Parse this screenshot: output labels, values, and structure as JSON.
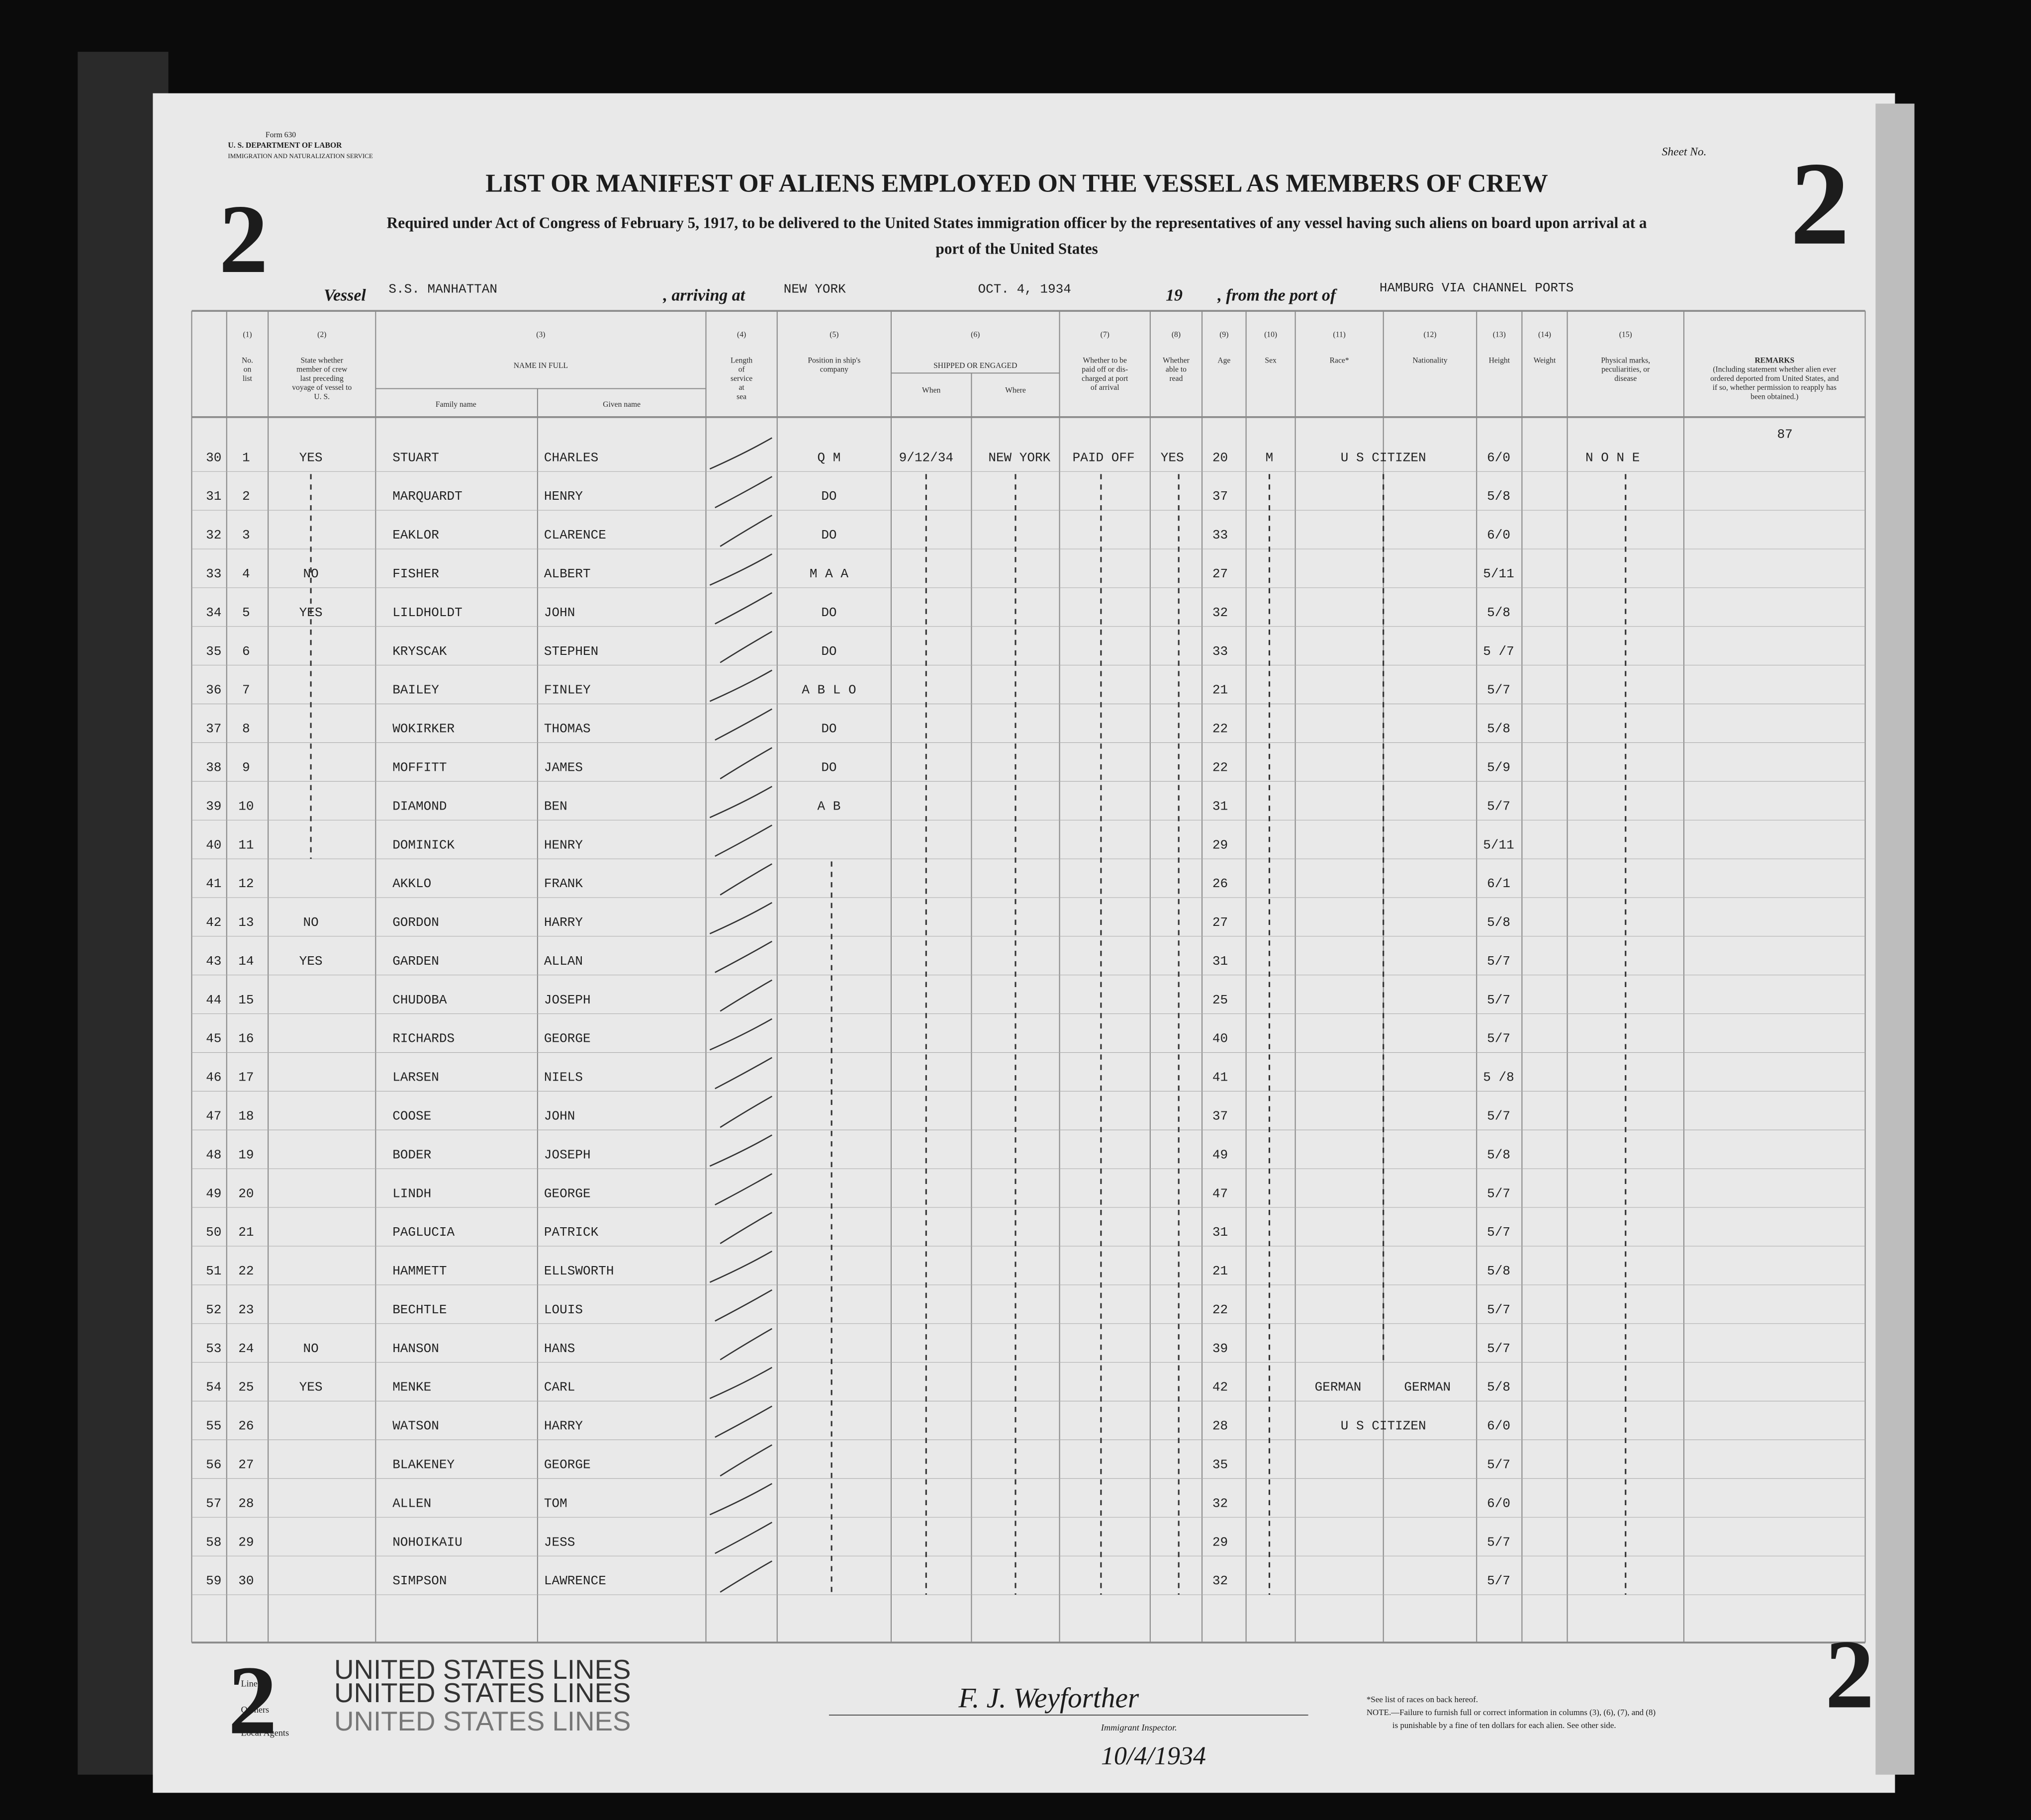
{
  "header": {
    "form": "Form 630",
    "department": "U. S. DEPARTMENT OF LABOR",
    "service": "IMMIGRATION AND NATURALIZATION SERVICE",
    "sheet_label": "Sheet No.",
    "title": "LIST OR MANIFEST OF ALIENS EMPLOYED ON THE VESSEL AS MEMBERS OF CREW",
    "subtitle": [
      "Required under Act of Congress of February 5, 1917, to be delivered to the United States immigration officer by the representatives of any vessel having such aliens on board upon arrival at a",
      "port of the United States"
    ]
  },
  "sheet_number": "2",
  "vessel": {
    "label": "Vessel",
    "name": "S.S. MANHATTAN",
    "arriving_label": ", arriving at",
    "arriving_at": "NEW YORK",
    "date": "OCT. 4, 1934",
    "year_prefix": "19",
    "from_label": ", from the port of",
    "from_port": "HAMBURG VIA CHANNEL PORTS"
  },
  "columns": [
    {
      "num": "(1)",
      "label": [
        "No.",
        "on",
        "list"
      ]
    },
    {
      "num": "(2)",
      "label": [
        "State whether",
        "member of crew",
        "last preceding",
        "voyage of vessel to",
        "U. S."
      ]
    },
    {
      "num": "(3)",
      "label": [
        "NAME IN FULL"
      ],
      "sub": [
        "Family name",
        "Given name"
      ]
    },
    {
      "num": "(4)",
      "label": [
        "Length",
        "of",
        "service",
        "at",
        "sea"
      ]
    },
    {
      "num": "(5)",
      "label": [
        "Position in ship's",
        "company"
      ]
    },
    {
      "num": "(6)",
      "label": [
        "SHIPPED OR ENGAGED"
      ],
      "sub": [
        "When",
        "Where"
      ]
    },
    {
      "num": "(7)",
      "label": [
        "Whether to be",
        "paid off or dis-",
        "charged at port",
        "of arrival"
      ]
    },
    {
      "num": "(8)",
      "label": [
        "Whether",
        "able to",
        "read"
      ]
    },
    {
      "num": "(9)",
      "label": [
        "Age"
      ]
    },
    {
      "num": "(10)",
      "label": [
        "Sex"
      ]
    },
    {
      "num": "(11)",
      "label": [
        "Race*"
      ]
    },
    {
      "num": "(12)",
      "label": [
        "Nationality"
      ]
    },
    {
      "num": "(13)",
      "label": [
        "Height"
      ]
    },
    {
      "num": "(14)",
      "label": [
        "Weight"
      ]
    },
    {
      "num": "(15)",
      "label": [
        "Physical marks,",
        "peculiarities, or",
        "disease"
      ]
    },
    {
      "label": [
        "REMARKS",
        "(Including statement whether alien ever",
        "ordered deported from United States, and",
        "if so, whether permission to reapply has",
        "been obtained.)"
      ]
    }
  ],
  "remark": "87",
  "rows": [
    [
      "30",
      "1",
      "YES",
      "STUART",
      "CHARLES",
      "Q M",
      "9/12/34",
      "NEW YORK",
      "PAID OFF",
      "YES",
      "20",
      "M",
      "U S CITIZEN",
      null,
      "6/0",
      "N O N E"
    ],
    [
      "31",
      "2",
      null,
      "MARQUARDT",
      "HENRY",
      "DO",
      null,
      null,
      null,
      null,
      "37",
      null,
      null,
      null,
      "5/8",
      null
    ],
    [
      "32",
      "3",
      null,
      "EAKLOR",
      "CLARENCE",
      "DO",
      null,
      null,
      null,
      null,
      "33",
      null,
      null,
      null,
      "6/0",
      null
    ],
    [
      "33",
      "4",
      "NO",
      "FISHER",
      "ALBERT",
      "M A A",
      null,
      null,
      null,
      null,
      "27",
      null,
      null,
      null,
      "5/11",
      null
    ],
    [
      "34",
      "5",
      "YES",
      "LILDHOLDT",
      "JOHN",
      "DO",
      null,
      null,
      null,
      null,
      "32",
      null,
      null,
      null,
      "5/8",
      null
    ],
    [
      "35",
      "6",
      null,
      "KRYSCAK",
      "STEPHEN",
      "DO",
      null,
      null,
      null,
      null,
      "33",
      null,
      null,
      null,
      "5 /7",
      null
    ],
    [
      "36",
      "7",
      null,
      "BAILEY",
      "FINLEY",
      "A B L O",
      null,
      null,
      null,
      null,
      "21",
      null,
      null,
      null,
      "5/7",
      null
    ],
    [
      "37",
      "8",
      null,
      "WOKIRKER",
      "THOMAS",
      "DO",
      null,
      null,
      null,
      null,
      "22",
      null,
      null,
      null,
      "5/8",
      null
    ],
    [
      "38",
      "9",
      null,
      "MOFFITT",
      "JAMES",
      "DO",
      null,
      null,
      null,
      null,
      "22",
      null,
      null,
      null,
      "5/9",
      null
    ],
    [
      "39",
      "10",
      null,
      "DIAMOND",
      "BEN",
      "A B",
      null,
      null,
      null,
      null,
      "31",
      null,
      null,
      null,
      "5/7",
      null
    ],
    [
      "40",
      "11",
      null,
      "DOMINICK",
      "HENRY",
      null,
      null,
      null,
      null,
      null,
      "29",
      null,
      null,
      null,
      "5/11",
      null
    ],
    [
      "41",
      "12",
      null,
      "AKKLO",
      "FRANK",
      null,
      null,
      null,
      null,
      null,
      "26",
      null,
      null,
      null,
      "6/1",
      null
    ],
    [
      "42",
      "13",
      "NO",
      "GORDON",
      "HARRY",
      null,
      null,
      null,
      null,
      null,
      "27",
      null,
      null,
      null,
      "5/8",
      null
    ],
    [
      "43",
      "14",
      "YES",
      "GARDEN",
      "ALLAN",
      null,
      null,
      null,
      null,
      null,
      "31",
      null,
      null,
      null,
      "5/7",
      null
    ],
    [
      "44",
      "15",
      null,
      "CHUDOBA",
      "JOSEPH",
      null,
      null,
      null,
      null,
      null,
      "25",
      null,
      null,
      null,
      "5/7",
      null
    ],
    [
      "45",
      "16",
      null,
      "RICHARDS",
      "GEORGE",
      null,
      null,
      null,
      null,
      null,
      "40",
      null,
      null,
      null,
      "5/7",
      null
    ],
    [
      "46",
      "17",
      null,
      "LARSEN",
      "NIELS",
      null,
      null,
      null,
      null,
      null,
      "41",
      null,
      null,
      null,
      "5 /8",
      null
    ],
    [
      "47",
      "18",
      null,
      "COOSE",
      "JOHN",
      null,
      null,
      null,
      null,
      null,
      "37",
      null,
      null,
      null,
      "5/7",
      null
    ],
    [
      "48",
      "19",
      null,
      "BODER",
      "JOSEPH",
      null,
      null,
      null,
      null,
      null,
      "49",
      null,
      null,
      null,
      "5/8",
      null
    ],
    [
      "49",
      "20",
      null,
      "LINDH",
      "GEORGE",
      null,
      null,
      null,
      null,
      null,
      "47",
      null,
      null,
      null,
      "5/7",
      null
    ],
    [
      "50",
      "21",
      null,
      "PAGLUCIA",
      "PATRICK",
      null,
      null,
      null,
      null,
      null,
      "31",
      null,
      null,
      null,
      "5/7",
      null
    ],
    [
      "51",
      "22",
      null,
      "HAMMETT",
      "ELLSWORTH",
      null,
      null,
      null,
      null,
      null,
      "21",
      null,
      null,
      null,
      "5/8",
      null
    ],
    [
      "52",
      "23",
      null,
      "BECHTLE",
      "LOUIS",
      null,
      null,
      null,
      null,
      null,
      "22",
      null,
      null,
      null,
      "5/7",
      null
    ],
    [
      "53",
      "24",
      "NO",
      "HANSON",
      "HANS",
      null,
      null,
      null,
      null,
      null,
      "39",
      null,
      null,
      null,
      "5/7",
      null
    ],
    [
      "54",
      "25",
      "YES",
      "MENKE",
      "CARL",
      null,
      null,
      null,
      null,
      null,
      "42",
      null,
      "GERMAN",
      "GERMAN",
      "5/8",
      null
    ],
    [
      "55",
      "26",
      null,
      "WATSON",
      "HARRY",
      null,
      null,
      null,
      null,
      null,
      "28",
      null,
      "U S CITIZEN",
      null,
      "6/0",
      null
    ],
    [
      "56",
      "27",
      null,
      "BLAKENEY",
      "GEORGE",
      null,
      null,
      null,
      null,
      null,
      "35",
      null,
      null,
      null,
      "5/7",
      null
    ],
    [
      "57",
      "28",
      null,
      "ALLEN",
      "TOM",
      null,
      null,
      null,
      null,
      null,
      "32",
      null,
      null,
      null,
      "6/0",
      null
    ],
    [
      "58",
      "29",
      null,
      "NOHOIKAIU",
      "JESS",
      null,
      null,
      null,
      null,
      null,
      "29",
      null,
      null,
      null,
      "5/7",
      null
    ],
    [
      "59",
      "30",
      null,
      "SIMPSON",
      "LAWRENCE",
      null,
      null,
      null,
      null,
      null,
      "32",
      null,
      null,
      null,
      "5/7",
      null
    ]
  ],
  "footer": {
    "line_label": "Line",
    "owners_label": "Owners",
    "agents_label": "Local Agents",
    "line": "UNITED STATES LINES",
    "owners": "UNITED STATES LINES",
    "agents": "UNITED STATES LINES",
    "signature": "F. J. Weyforther",
    "inspector_label": "Immigrant Inspector.",
    "date": "10/4/1934",
    "notes": [
      "*See list of races on back hereof.",
      "NOTE.—Failure to furnish full or correct information in columns (3), (6), (7), and (8)",
      "is punishable by a fine of ten dollars for each alien.  See other side."
    ]
  }
}
